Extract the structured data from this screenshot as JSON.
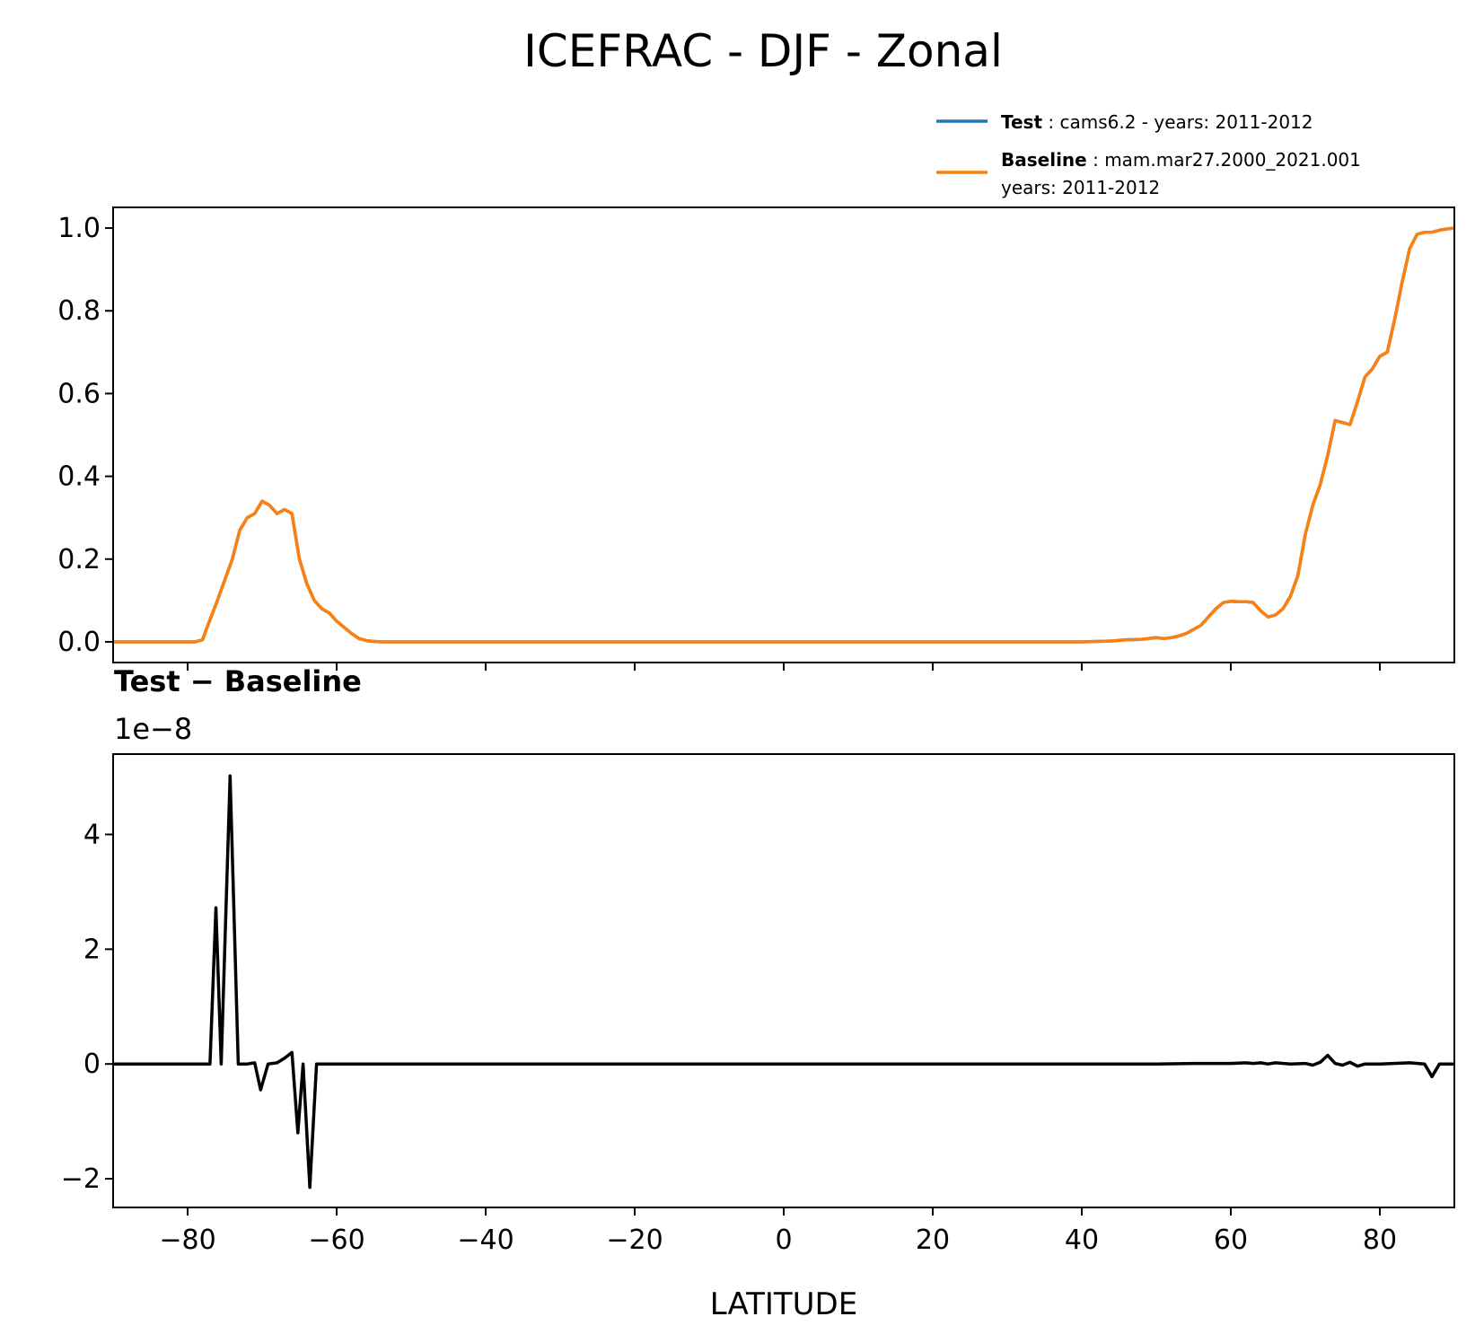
{
  "title": "ICEFRAC - DJF - Zonal",
  "legend": {
    "placement": "upper-right, above top panel",
    "entries": [
      {
        "name_bold": "Test",
        "desc": " : cams6.2 - years: 2011-2012",
        "desc2": "",
        "color": "#1f77b4"
      },
      {
        "name_bold": "Baseline",
        "desc": " : mam.mar27.2000_2021.001",
        "desc2": "years: 2011-2012",
        "color": "#ff7f0e"
      }
    ]
  },
  "chart_data": [
    {
      "type": "line",
      "panel": "top",
      "xlim": [
        -90,
        90
      ],
      "ylim": [
        -0.05,
        1.05
      ],
      "yticks": [
        "0.0",
        "0.2",
        "0.4",
        "0.6",
        "0.8",
        "1.0"
      ],
      "grid": false,
      "series": [
        {
          "name": "Test",
          "color": "#1f77b4",
          "x": [
            -90,
            -79,
            -78,
            -77.5,
            -76,
            -75,
            -74,
            -73,
            -72,
            -71,
            -70,
            -69,
            -68,
            -67,
            -66,
            -65,
            -64,
            -63,
            -62,
            -61,
            -60,
            -59,
            -58,
            -57,
            -56,
            -55,
            -54,
            -50,
            -20,
            0,
            20,
            40,
            44,
            46,
            48,
            50,
            51,
            52,
            53,
            54,
            55,
            56,
            57,
            58,
            59,
            60,
            61,
            62,
            63,
            64,
            65,
            66,
            67,
            68,
            69,
            70,
            71,
            72,
            73,
            74,
            75,
            76,
            77,
            78,
            79,
            80,
            81,
            82,
            83,
            84,
            85,
            86,
            87,
            88,
            89,
            90
          ],
          "y": [
            0,
            0,
            0.005,
            0.03,
            0.1,
            0.15,
            0.2,
            0.27,
            0.3,
            0.31,
            0.34,
            0.33,
            0.31,
            0.32,
            0.31,
            0.2,
            0.14,
            0.1,
            0.08,
            0.07,
            0.05,
            0.035,
            0.02,
            0.008,
            0.003,
            0.001,
            0,
            0,
            0,
            0,
            0,
            0,
            0.002,
            0.005,
            0.006,
            0.01,
            0.008,
            0.01,
            0.014,
            0.02,
            0.03,
            0.04,
            0.06,
            0.08,
            0.095,
            0.098,
            0.097,
            0.097,
            0.095,
            0.075,
            0.06,
            0.065,
            0.08,
            0.11,
            0.16,
            0.26,
            0.33,
            0.38,
            0.45,
            0.535,
            0.53,
            0.525,
            0.58,
            0.64,
            0.66,
            0.69,
            0.7,
            0.78,
            0.87,
            0.95,
            0.985,
            0.99,
            0.99,
            0.995,
            0.998,
            1.0
          ]
        },
        {
          "name": "Baseline",
          "color": "#ff7f0e",
          "x": [
            -90,
            -79,
            -78,
            -77.5,
            -76,
            -75,
            -74,
            -73,
            -72,
            -71,
            -70,
            -69,
            -68,
            -67,
            -66,
            -65,
            -64,
            -63,
            -62,
            -61,
            -60,
            -59,
            -58,
            -57,
            -56,
            -55,
            -54,
            -50,
            -20,
            0,
            20,
            40,
            44,
            46,
            48,
            50,
            51,
            52,
            53,
            54,
            55,
            56,
            57,
            58,
            59,
            60,
            61,
            62,
            63,
            64,
            65,
            66,
            67,
            68,
            69,
            70,
            71,
            72,
            73,
            74,
            75,
            76,
            77,
            78,
            79,
            80,
            81,
            82,
            83,
            84,
            85,
            86,
            87,
            88,
            89,
            90
          ],
          "y": [
            0,
            0,
            0.005,
            0.03,
            0.1,
            0.15,
            0.2,
            0.27,
            0.3,
            0.31,
            0.34,
            0.33,
            0.31,
            0.32,
            0.31,
            0.2,
            0.14,
            0.1,
            0.08,
            0.07,
            0.05,
            0.035,
            0.02,
            0.008,
            0.003,
            0.001,
            0,
            0,
            0,
            0,
            0,
            0,
            0.002,
            0.005,
            0.006,
            0.01,
            0.008,
            0.01,
            0.014,
            0.02,
            0.03,
            0.04,
            0.06,
            0.08,
            0.095,
            0.098,
            0.097,
            0.097,
            0.095,
            0.075,
            0.06,
            0.065,
            0.08,
            0.11,
            0.16,
            0.26,
            0.33,
            0.38,
            0.45,
            0.535,
            0.53,
            0.525,
            0.58,
            0.64,
            0.66,
            0.69,
            0.7,
            0.78,
            0.87,
            0.95,
            0.985,
            0.99,
            0.99,
            0.995,
            0.998,
            1.0
          ]
        }
      ]
    },
    {
      "type": "line",
      "panel": "bottom",
      "title": "Test − Baseline",
      "offset_label": "1e−8",
      "xlabel": "LATITUDE",
      "xlim": [
        -90,
        90
      ],
      "ylim": [
        -2.5,
        5.4
      ],
      "xticks": [
        "−80",
        "−60",
        "−40",
        "−20",
        "0",
        "20",
        "40",
        "60",
        "80"
      ],
      "xtick_values": [
        -80,
        -60,
        -40,
        -20,
        0,
        20,
        40,
        60,
        80
      ],
      "yticks": [
        "−2",
        "0",
        "2",
        "4"
      ],
      "ytick_values": [
        -2,
        0,
        2,
        4
      ],
      "grid": false,
      "series": [
        {
          "color": "#000000",
          "x": [
            -90,
            -77,
            -76.2,
            -75.5,
            -74.3,
            -73.2,
            -72,
            -71,
            -70.2,
            -69.2,
            -68,
            -67,
            -66,
            -65.2,
            -64.5,
            -63.6,
            -62.7,
            -61.8,
            -60,
            -40,
            0,
            40,
            50,
            55,
            60,
            62,
            63,
            64,
            65,
            66,
            68,
            70,
            71,
            72,
            73,
            74,
            75,
            76,
            77,
            78,
            80,
            84,
            86,
            87,
            88,
            89,
            90
          ],
          "y": [
            0,
            0,
            2.72,
            0,
            5.02,
            0,
            0,
            0.02,
            -0.45,
            0,
            0.02,
            0.1,
            0.2,
            -1.2,
            0,
            -2.15,
            0,
            0,
            0,
            0,
            0,
            0,
            0,
            0.01,
            0.01,
            0.02,
            0.01,
            0.02,
            0,
            0.02,
            0,
            0.01,
            -0.02,
            0.03,
            0.15,
            0.01,
            -0.02,
            0.03,
            -0.04,
            0,
            0,
            0.02,
            0,
            -0.22,
            0,
            0,
            0
          ]
        }
      ]
    }
  ]
}
